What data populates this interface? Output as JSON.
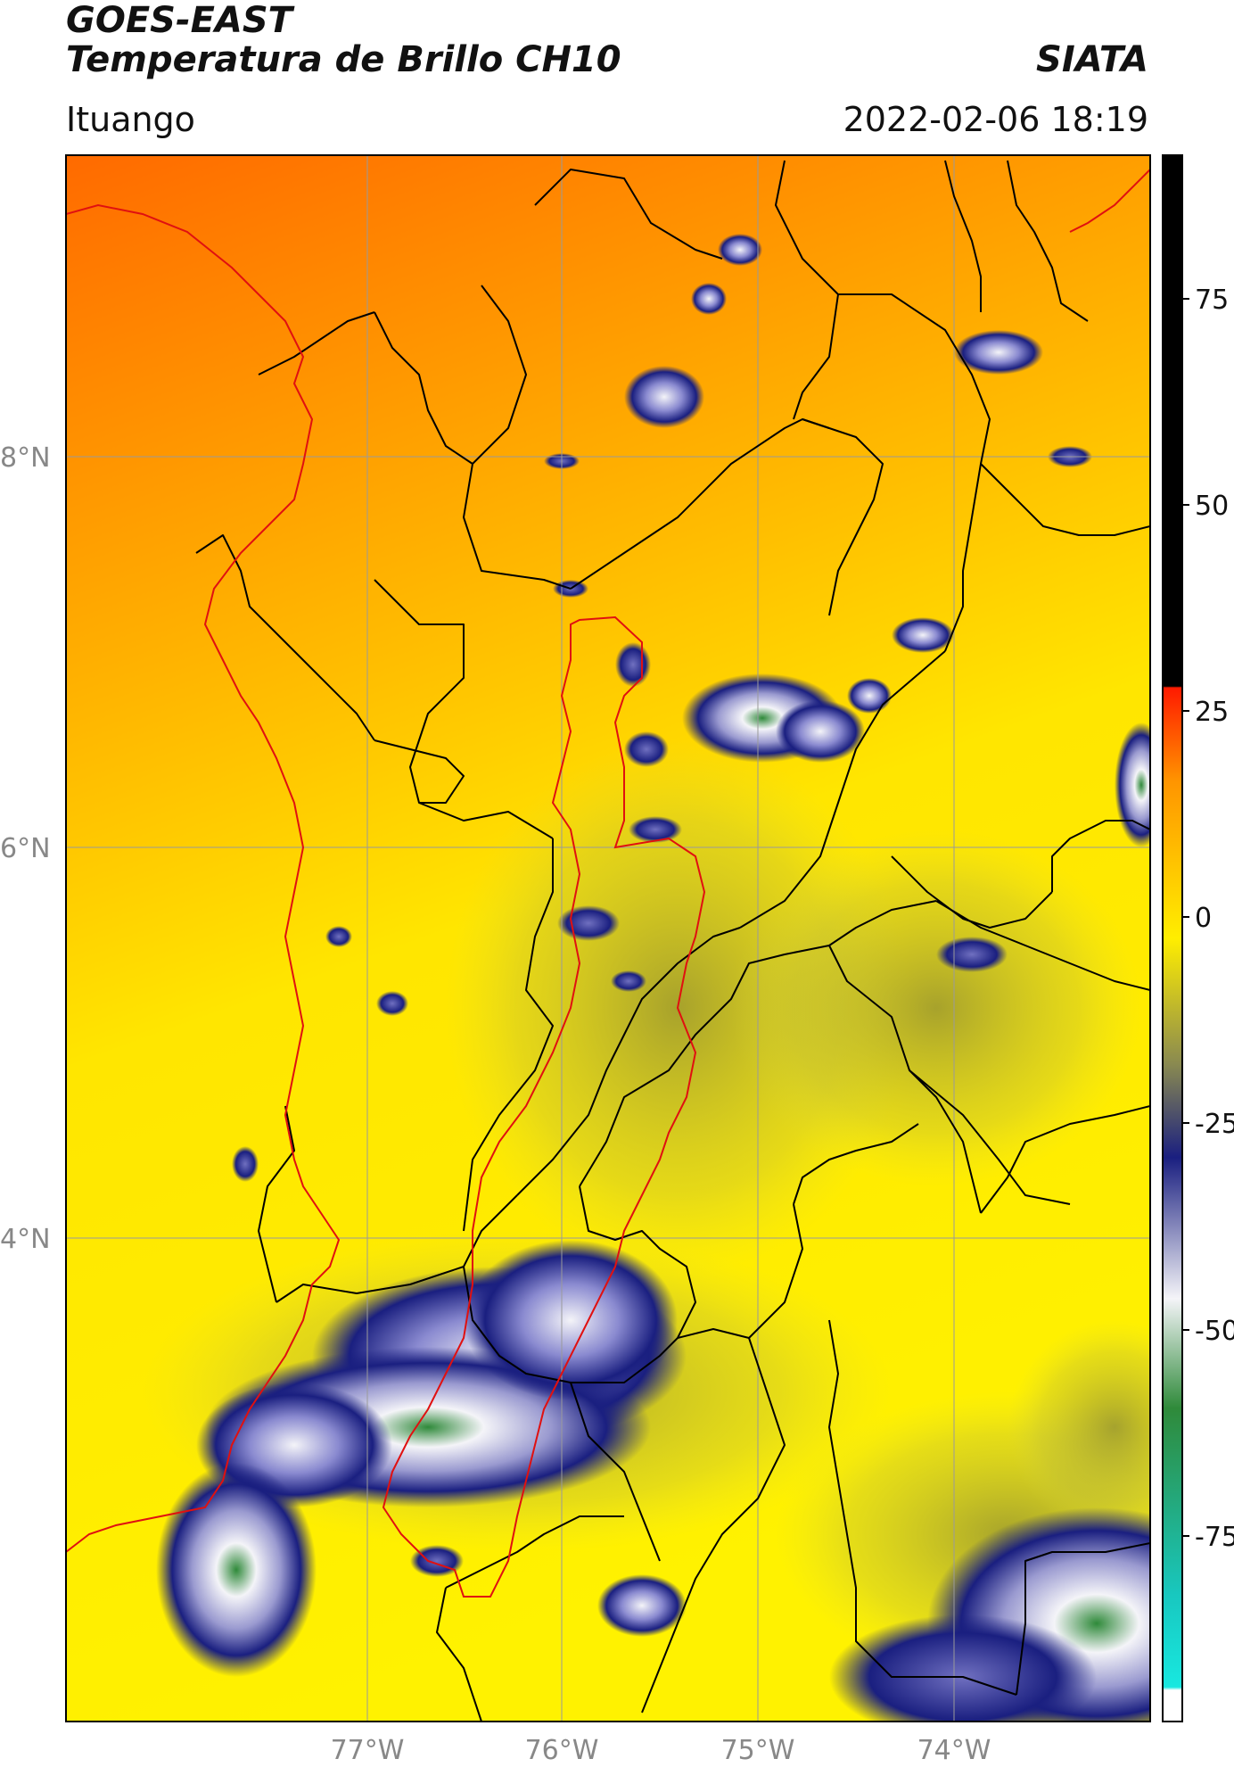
{
  "header": {
    "title_line1": "GOES-EAST",
    "title_line2": "Temperatura de Brillo CH10",
    "brand": "SIATA",
    "location": "Ituango",
    "timestamp": "2022-02-06 18:19"
  },
  "map": {
    "lat_labels": [
      "8°N",
      "6°N",
      "4°N"
    ],
    "lon_labels": [
      "77°W",
      "76°W",
      "75°W",
      "74°W"
    ],
    "colors": {
      "border": "#000000",
      "basin_outline": "#e01010",
      "graticule": "#9a9a9a"
    }
  },
  "colorbar": {
    "tick_labels": [
      "75",
      "50",
      "25",
      "0",
      "-25",
      "-50",
      "-75"
    ],
    "colors": {
      "warm": "#000000",
      "zero": "#ff1a00",
      "orange": "#ff9500",
      "yellow": "#ffee00",
      "olive": "#9a9a30",
      "navy": "#1a1f80",
      "white": "#f4f4f8",
      "green": "#2f8a3a",
      "cyan": "#18d8d0"
    }
  }
}
